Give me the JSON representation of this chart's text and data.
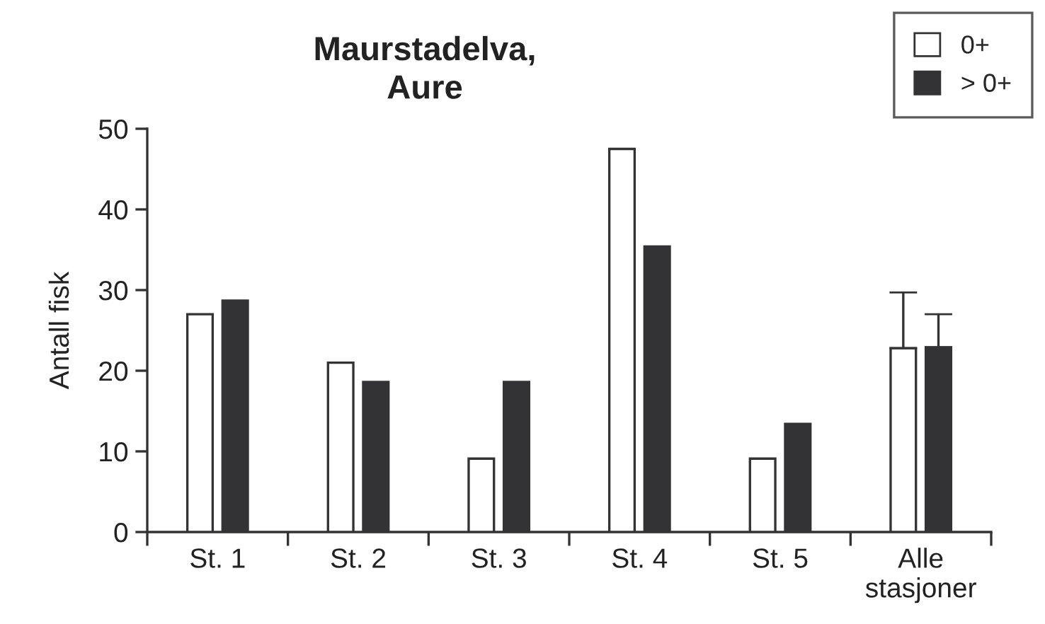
{
  "chart_data": {
    "type": "bar",
    "title": "Maurstadelva,\nAure",
    "ylabel": "Antall fisk",
    "categories": [
      "St. 1",
      "St. 2",
      "St. 3",
      "St. 4",
      "St. 5",
      "Alle\nstasjoner"
    ],
    "series": [
      {
        "name": "0+",
        "color": "#ffffff",
        "values": [
          27.0,
          21.0,
          9.1,
          47.5,
          9.1,
          22.8
        ],
        "errors": [
          null,
          null,
          null,
          null,
          null,
          [
            22.8,
            29.7
          ]
        ]
      },
      {
        "name": "> 0+",
        "color": "#333336",
        "values": [
          28.7,
          18.6,
          18.6,
          35.4,
          13.4,
          22.9
        ],
        "errors": [
          null,
          null,
          null,
          null,
          null,
          [
            22.9,
            27.0
          ]
        ]
      }
    ],
    "ylim": [
      0,
      50
    ],
    "yticks": [
      0,
      10,
      20,
      30,
      40,
      50
    ],
    "grid": false,
    "legend": "top right"
  }
}
